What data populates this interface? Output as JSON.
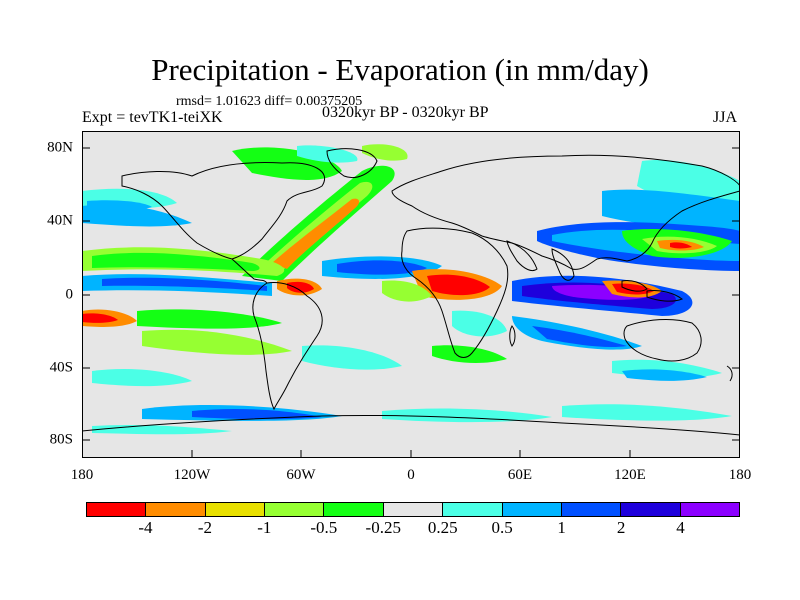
{
  "title": "Precipitation - Evaporation (in mm/day)",
  "stats": "rmsd= 1.01623 diff= 0.00375205",
  "experiment": "Expt = tevTK1-teiXK",
  "period": "0320kyr BP - 0320kyr BP",
  "season": "JJA",
  "axes": {
    "lat_labels": [
      "80N",
      "40N",
      "0",
      "40S",
      "80S"
    ],
    "lon_labels": [
      "180",
      "120W",
      "60W",
      "0",
      "60E",
      "120E",
      "180"
    ]
  },
  "colorbar": {
    "colors": [
      "#ff0000",
      "#ff8c00",
      "#e8e000",
      "#96ff32",
      "#14ff14",
      "#e6e6e6",
      "#4bffe6",
      "#00b4ff",
      "#0050ff",
      "#1e00dc",
      "#8c00ff"
    ],
    "labels": [
      "-4",
      "-2",
      "-1",
      "-0.5",
      "-0.25",
      "0.25",
      "0.5",
      "1",
      "2",
      "4"
    ]
  },
  "map": {
    "background_color": "#e6e6e6",
    "coastline_color": "#000000"
  }
}
